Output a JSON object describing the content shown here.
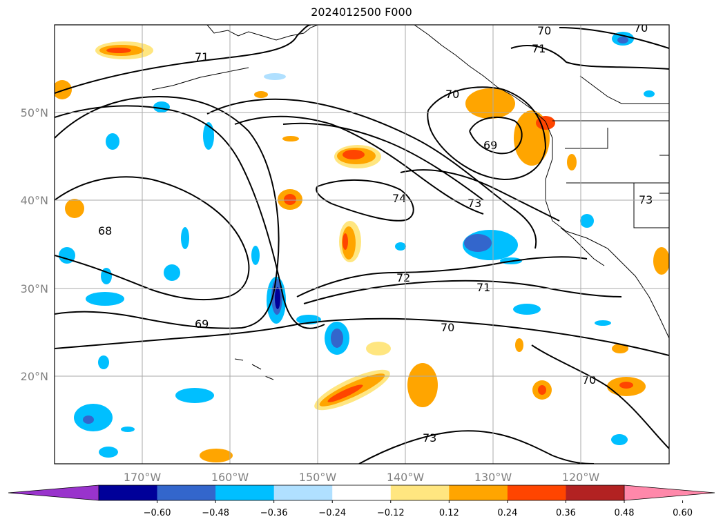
{
  "title": "2024012500 F000",
  "lon_labels": [
    "170°W",
    "160°W",
    "150°W",
    "140°W",
    "130°W",
    "120°W"
  ],
  "lat_labels": [
    "50°N",
    "40°N",
    "30°N",
    "20°N"
  ],
  "colorbar": {
    "colors": [
      "#9933cc",
      "#000099",
      "#3366cc",
      "#00bfff",
      "#b0e0ff",
      "#ffffff",
      "#ffe680",
      "#ffa500",
      "#ff4500",
      "#b22222",
      "#ff88aa"
    ],
    "ticks": [
      "−0.60",
      "−0.48",
      "−0.36",
      "−0.24",
      "−0.12",
      "0.12",
      "0.24",
      "0.36",
      "0.48",
      "0.60"
    ]
  },
  "contour_labels": [
    "71",
    "70",
    "70",
    "71",
    "69",
    "68",
    "74",
    "73",
    "72",
    "71",
    "69",
    "70",
    "70",
    "70",
    "73",
    "73"
  ]
}
